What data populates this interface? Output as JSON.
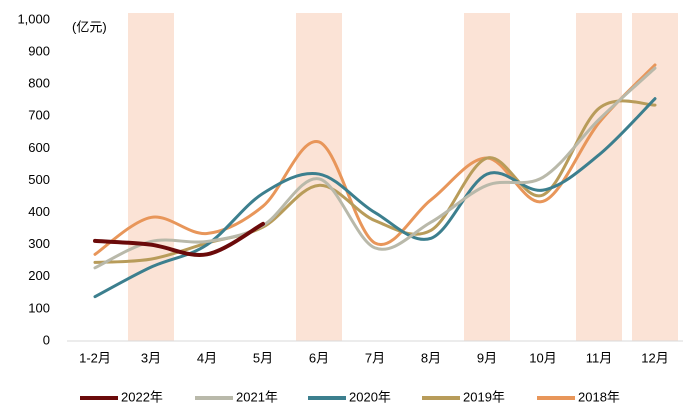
{
  "chart_data": {
    "type": "line",
    "unit_label": "(亿元)",
    "categories": [
      "1-2月",
      "3月",
      "4月",
      "5月",
      "6月",
      "7月",
      "8月",
      "9月",
      "10月",
      "11月",
      "12月"
    ],
    "series": [
      {
        "name": "2022年",
        "color": "#6b0a0a",
        "values": [
          312,
          300,
          270,
          365,
          null,
          null,
          null,
          null,
          null,
          null,
          null
        ]
      },
      {
        "name": "2021年",
        "color": "#b9b9aa",
        "values": [
          228,
          310,
          310,
          360,
          505,
          290,
          370,
          485,
          510,
          690,
          850
        ]
      },
      {
        "name": "2020年",
        "color": "#3c7f8e",
        "values": [
          138,
          230,
          300,
          460,
          520,
          400,
          320,
          520,
          470,
          580,
          755
        ]
      },
      {
        "name": "2019年",
        "color": "#b89c5a",
        "values": [
          245,
          255,
          305,
          355,
          485,
          375,
          345,
          570,
          455,
          725,
          735
        ]
      },
      {
        "name": "2018年",
        "color": "#e8965a",
        "values": [
          270,
          385,
          335,
          420,
          620,
          305,
          440,
          570,
          435,
          680,
          860
        ]
      }
    ],
    "ylim": [
      0,
      1000
    ],
    "yticks": [
      0,
      100,
      200,
      300,
      400,
      500,
      600,
      700,
      800,
      900,
      {
        "value": 1000,
        "label": "1,000"
      }
    ],
    "highlight_categories": [
      1,
      4,
      7,
      9,
      10
    ],
    "highlight_color": "#fbe3d6",
    "legend": "bottom"
  }
}
